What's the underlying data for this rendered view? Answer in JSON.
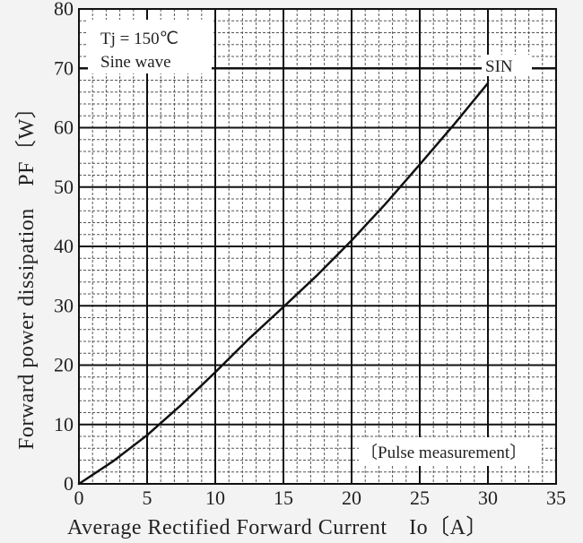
{
  "chart_data": {
    "type": "line",
    "xlabel": "Average Rectified Forward Current　Io〔A〕",
    "ylabel": "Forward power dissipation　PF〔W〕",
    "xlim": [
      0,
      35
    ],
    "ylim": [
      0,
      80
    ],
    "x_ticks": [
      0,
      5,
      10,
      15,
      20,
      25,
      30,
      35
    ],
    "y_ticks": [
      0,
      10,
      20,
      30,
      40,
      50,
      60,
      70,
      80
    ],
    "grid": true,
    "series": [
      {
        "name": "SIN",
        "x": [
          0,
          2.5,
          5,
          7.5,
          10,
          12.5,
          15,
          17.5,
          20,
          22.5,
          25,
          27.5,
          30
        ],
        "y": [
          0,
          3.8,
          8.2,
          13.3,
          18.8,
          24.5,
          29.8,
          35.2,
          41.0,
          47.2,
          53.8,
          60.5,
          67.5
        ]
      }
    ],
    "annotations": {
      "conditions_line1": "Tj = 150℃",
      "conditions_line2": "Sine wave",
      "series_label": "SIN",
      "note": "〔Pulse measurement〕"
    }
  }
}
